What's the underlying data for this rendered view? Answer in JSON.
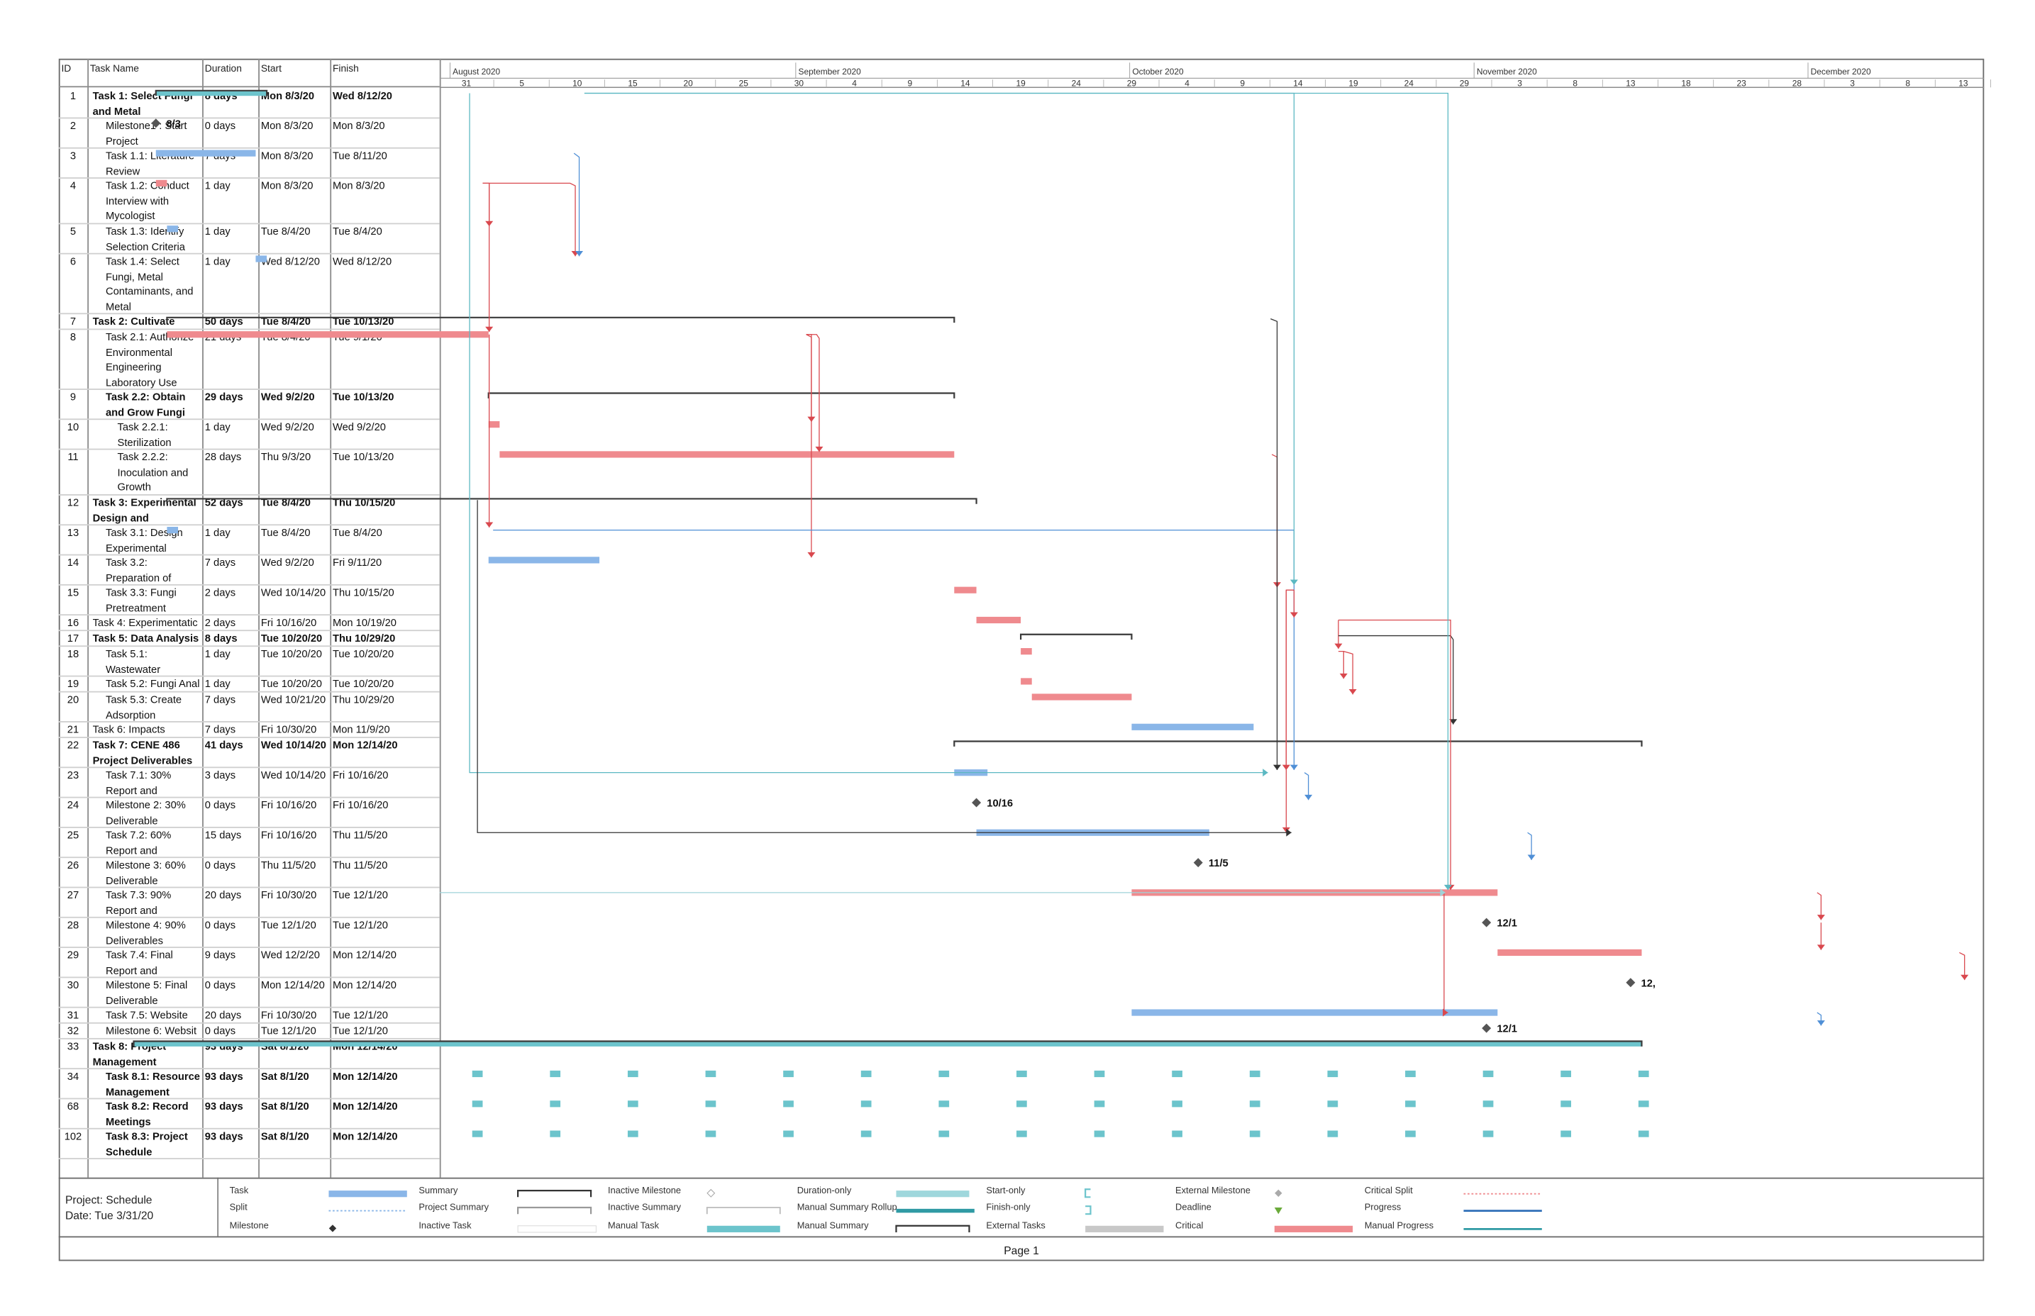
{
  "columns": {
    "id": "ID",
    "name": "Task Name",
    "duration": "Duration",
    "start": "Start",
    "finish": "Finish"
  },
  "timescale": {
    "months": [
      "August 2020",
      "September 2020",
      "October 2020",
      "November 2020",
      "December 2020"
    ],
    "days": [
      "31",
      "5",
      "10",
      "15",
      "20",
      "25",
      "30",
      "4",
      "9",
      "14",
      "19",
      "24",
      "29",
      "4",
      "9",
      "14",
      "19",
      "24",
      "29",
      "3",
      "8",
      "13",
      "18",
      "23",
      "28",
      "3",
      "8",
      "13"
    ]
  },
  "tasks": [
    {
      "id": "1",
      "name": "Task 1: Select Fungi and Metal",
      "duration": "8 days",
      "start": "Mon 8/3/20",
      "finish": "Wed 8/12/20",
      "bold": true,
      "indent": 0,
      "type": "summary",
      "bar": [
        "2020-08-03",
        "2020-08-12"
      ]
    },
    {
      "id": "2",
      "name": "Milestone1 : Start Project",
      "duration": "0 days",
      "start": "Mon 8/3/20",
      "finish": "Mon 8/3/20",
      "bold": false,
      "indent": 1,
      "type": "milestone",
      "bar": [
        "2020-08-03",
        "2020-08-03"
      ],
      "label": "8/3"
    },
    {
      "id": "3",
      "name": "Task 1.1: Literature Review",
      "duration": "7 days",
      "start": "Mon 8/3/20",
      "finish": "Tue 8/11/20",
      "bold": false,
      "indent": 1,
      "type": "task",
      "bar": [
        "2020-08-03",
        "2020-08-11"
      ]
    },
    {
      "id": "4",
      "name": "Task 1.2: Conduct Interview with Mycologist",
      "duration": "1 day",
      "start": "Mon 8/3/20",
      "finish": "Mon 8/3/20",
      "bold": false,
      "indent": 1,
      "type": "critical",
      "bar": [
        "2020-08-03",
        "2020-08-03"
      ]
    },
    {
      "id": "5",
      "name": "Task 1.3: Identify Selection Criteria",
      "duration": "1 day",
      "start": "Tue 8/4/20",
      "finish": "Tue 8/4/20",
      "bold": false,
      "indent": 1,
      "type": "task",
      "bar": [
        "2020-08-04",
        "2020-08-04"
      ]
    },
    {
      "id": "6",
      "name": "Task 1.4: Select Fungi, Metal Contaminants, and Metal",
      "duration": "1 day",
      "start": "Wed 8/12/20",
      "finish": "Wed 8/12/20",
      "bold": false,
      "indent": 1,
      "type": "task",
      "bar": [
        "2020-08-12",
        "2020-08-12"
      ]
    },
    {
      "id": "7",
      "name": "Task 2: Cultivate Fung",
      "duration": "50 days",
      "start": "Tue 8/4/20",
      "finish": "Tue 10/13/20",
      "bold": true,
      "indent": 0,
      "type": "manualsummary",
      "bar": [
        "2020-08-04",
        "2020-10-13"
      ]
    },
    {
      "id": "8",
      "name": "Task 2.1: Authorize Environmental Engineering Laboratory Use",
      "duration": "21 days",
      "start": "Tue 8/4/20",
      "finish": "Tue 9/1/20",
      "bold": false,
      "indent": 1,
      "type": "critical",
      "bar": [
        "2020-08-04",
        "2020-09-01"
      ]
    },
    {
      "id": "9",
      "name": "Task 2.2: Obtain and Grow Fungi",
      "duration": "29 days",
      "start": "Wed 9/2/20",
      "finish": "Tue 10/13/20",
      "bold": true,
      "indent": 1,
      "type": "manualsummary",
      "bar": [
        "2020-09-02",
        "2020-10-13"
      ]
    },
    {
      "id": "10",
      "name": "Task 2.2.1: Sterilization",
      "duration": "1 day",
      "start": "Wed 9/2/20",
      "finish": "Wed 9/2/20",
      "bold": false,
      "indent": 2,
      "type": "critical",
      "bar": [
        "2020-09-02",
        "2020-09-02"
      ]
    },
    {
      "id": "11",
      "name": "Task 2.2.2: Inoculation and Growth",
      "duration": "28 days",
      "start": "Thu 9/3/20",
      "finish": "Tue 10/13/20",
      "bold": false,
      "indent": 2,
      "type": "critical",
      "bar": [
        "2020-09-03",
        "2020-10-13"
      ]
    },
    {
      "id": "12",
      "name": "Task 3: Experimental Design and",
      "duration": "52 days",
      "start": "Tue 8/4/20",
      "finish": "Thu 10/15/20",
      "bold": true,
      "indent": 0,
      "type": "manualsummary",
      "bar": [
        "2020-08-04",
        "2020-10-15"
      ]
    },
    {
      "id": "13",
      "name": "Task 3.1: Design Experimental",
      "duration": "1 day",
      "start": "Tue 8/4/20",
      "finish": "Tue 8/4/20",
      "bold": false,
      "indent": 1,
      "type": "task",
      "bar": [
        "2020-08-04",
        "2020-08-04"
      ]
    },
    {
      "id": "14",
      "name": "Task 3.2: Preparation of",
      "duration": "7 days",
      "start": "Wed 9/2/20",
      "finish": "Fri 9/11/20",
      "bold": false,
      "indent": 1,
      "type": "task",
      "bar": [
        "2020-09-02",
        "2020-09-11"
      ]
    },
    {
      "id": "15",
      "name": "Task 3.3: Fungi Pretreatment",
      "duration": "2 days",
      "start": "Wed 10/14/20",
      "finish": "Thu 10/15/20",
      "bold": false,
      "indent": 1,
      "type": "critical",
      "bar": [
        "2020-10-14",
        "2020-10-15"
      ]
    },
    {
      "id": "16",
      "name": "Task 4: Experimentatic",
      "duration": "2 days",
      "start": "Fri 10/16/20",
      "finish": "Mon 10/19/20",
      "bold": false,
      "indent": 0,
      "type": "critical",
      "bar": [
        "2020-10-16",
        "2020-10-19"
      ]
    },
    {
      "id": "17",
      "name": "Task 5: Data Analysis",
      "duration": "8 days",
      "start": "Tue 10/20/20",
      "finish": "Thu 10/29/20",
      "bold": true,
      "indent": 0,
      "type": "manualsummary",
      "bar": [
        "2020-10-20",
        "2020-10-29"
      ]
    },
    {
      "id": "18",
      "name": "Task 5.1: Wastewater",
      "duration": "1 day",
      "start": "Tue 10/20/20",
      "finish": "Tue 10/20/20",
      "bold": false,
      "indent": 1,
      "type": "critical",
      "bar": [
        "2020-10-20",
        "2020-10-20"
      ]
    },
    {
      "id": "19",
      "name": "Task 5.2: Fungi Anal",
      "duration": "1 day",
      "start": "Tue 10/20/20",
      "finish": "Tue 10/20/20",
      "bold": false,
      "indent": 1,
      "type": "critical",
      "bar": [
        "2020-10-20",
        "2020-10-20"
      ]
    },
    {
      "id": "20",
      "name": "Task 5.3: Create Adsorption",
      "duration": "7 days",
      "start": "Wed 10/21/20",
      "finish": "Thu 10/29/20",
      "bold": false,
      "indent": 1,
      "type": "critical",
      "bar": [
        "2020-10-21",
        "2020-10-29"
      ]
    },
    {
      "id": "21",
      "name": "Task 6: Impacts",
      "duration": "7 days",
      "start": "Fri 10/30/20",
      "finish": "Mon 11/9/20",
      "bold": false,
      "indent": 0,
      "type": "task",
      "bar": [
        "2020-10-30",
        "2020-11-09"
      ]
    },
    {
      "id": "22",
      "name": "Task 7: CENE 486 Project Deliverables",
      "duration": "41 days",
      "start": "Wed 10/14/20",
      "finish": "Mon 12/14/20",
      "bold": true,
      "indent": 0,
      "type": "manualsummary",
      "bar": [
        "2020-10-14",
        "2020-12-14"
      ]
    },
    {
      "id": "23",
      "name": "Task 7.1: 30% Report and",
      "duration": "3 days",
      "start": "Wed 10/14/20",
      "finish": "Fri 10/16/20",
      "bold": false,
      "indent": 1,
      "type": "task",
      "bar": [
        "2020-10-14",
        "2020-10-16"
      ]
    },
    {
      "id": "24",
      "name": "Milestone 2: 30% Deliverable",
      "duration": "0 days",
      "start": "Fri 10/16/20",
      "finish": "Fri 10/16/20",
      "bold": false,
      "indent": 1,
      "type": "milestone",
      "bar": [
        "2020-10-16",
        "2020-10-16"
      ],
      "label": "10/16"
    },
    {
      "id": "25",
      "name": "Task 7.2: 60% Report and",
      "duration": "15 days",
      "start": "Fri 10/16/20",
      "finish": "Thu 11/5/20",
      "bold": false,
      "indent": 1,
      "type": "task",
      "bar": [
        "2020-10-16",
        "2020-11-05"
      ]
    },
    {
      "id": "26",
      "name": "Milestone 3: 60% Deliverable",
      "duration": "0 days",
      "start": "Thu 11/5/20",
      "finish": "Thu 11/5/20",
      "bold": false,
      "indent": 1,
      "type": "milestone",
      "bar": [
        "2020-11-05",
        "2020-11-05"
      ],
      "label": "11/5"
    },
    {
      "id": "27",
      "name": "Task 7.3: 90% Report and",
      "duration": "20 days",
      "start": "Fri 10/30/20",
      "finish": "Tue 12/1/20",
      "bold": false,
      "indent": 1,
      "type": "critical",
      "bar": [
        "2020-10-30",
        "2020-12-01"
      ]
    },
    {
      "id": "28",
      "name": "Milestone 4: 90% Deliverables",
      "duration": "0 days",
      "start": "Tue 12/1/20",
      "finish": "Tue 12/1/20",
      "bold": false,
      "indent": 1,
      "type": "milestone",
      "bar": [
        "2020-12-01",
        "2020-12-01"
      ],
      "label": "12/1"
    },
    {
      "id": "29",
      "name": "Task 7.4: Final Report and",
      "duration": "9 days",
      "start": "Wed 12/2/20",
      "finish": "Mon 12/14/20",
      "bold": false,
      "indent": 1,
      "type": "critical",
      "bar": [
        "2020-12-02",
        "2020-12-14"
      ]
    },
    {
      "id": "30",
      "name": "Milestone 5: Final Deliverable",
      "duration": "0 days",
      "start": "Mon 12/14/20",
      "finish": "Mon 12/14/20",
      "bold": false,
      "indent": 1,
      "type": "milestone",
      "bar": [
        "2020-12-14",
        "2020-12-14"
      ],
      "label": "12,"
    },
    {
      "id": "31",
      "name": "Task 7.5: Website",
      "duration": "20 days",
      "start": "Fri 10/30/20",
      "finish": "Tue 12/1/20",
      "bold": false,
      "indent": 1,
      "type": "task",
      "bar": [
        "2020-10-30",
        "2020-12-01"
      ]
    },
    {
      "id": "32",
      "name": "Milestone 6: Websit",
      "duration": "0 days",
      "start": "Tue 12/1/20",
      "finish": "Tue 12/1/20",
      "bold": false,
      "indent": 1,
      "type": "milestone",
      "bar": [
        "2020-12-01",
        "2020-12-01"
      ],
      "label": "12/1"
    },
    {
      "id": "33",
      "name": "Task 8: Project Management",
      "duration": "93 days",
      "start": "Sat 8/1/20",
      "finish": "Mon 12/14/20",
      "bold": true,
      "indent": 0,
      "type": "projsummary",
      "bar": [
        "2020-08-01",
        "2020-12-14"
      ]
    },
    {
      "id": "34",
      "name": "Task 8.1: Resource Management",
      "duration": "93 days",
      "start": "Sat 8/1/20",
      "finish": "Mon 12/14/20",
      "bold": true,
      "indent": 1,
      "type": "recurring",
      "bar": [
        "2020-08-01",
        "2020-12-14"
      ]
    },
    {
      "id": "68",
      "name": "Task 8.2: Record Meetings",
      "duration": "93 days",
      "start": "Sat 8/1/20",
      "finish": "Mon 12/14/20",
      "bold": true,
      "indent": 1,
      "type": "recurring",
      "bar": [
        "2020-08-01",
        "2020-12-14"
      ]
    },
    {
      "id": "102",
      "name": "Task 8.3: Project Schedule",
      "duration": "93 days",
      "start": "Sat 8/1/20",
      "finish": "Mon 12/14/20",
      "bold": true,
      "indent": 1,
      "type": "recurring",
      "bar": [
        "2020-08-01",
        "2020-12-14"
      ]
    }
  ],
  "legend": {
    "project": "Project: Schedule",
    "date": "Date: Tue 3/31/20",
    "items": [
      {
        "label": "Task",
        "swatch": "task"
      },
      {
        "label": "Split",
        "swatch": "split"
      },
      {
        "label": "Milestone",
        "swatch": "milestone"
      },
      {
        "label": "Summary",
        "swatch": "summary"
      },
      {
        "label": "Project Summary",
        "swatch": "projsummary"
      },
      {
        "label": "Inactive Task",
        "swatch": "inactivetask"
      },
      {
        "label": "Inactive Milestone",
        "swatch": "inactivemilestone"
      },
      {
        "label": "Inactive Summary",
        "swatch": "inactivesummary"
      },
      {
        "label": "Manual Task",
        "swatch": "manualtask"
      },
      {
        "label": "Duration-only",
        "swatch": "durationonly"
      },
      {
        "label": "Manual Summary Rollup",
        "swatch": "manualrollup"
      },
      {
        "label": "Manual Summary",
        "swatch": "manualsummary"
      },
      {
        "label": "Start-only",
        "swatch": "startonly"
      },
      {
        "label": "Finish-only",
        "swatch": "finishonly"
      },
      {
        "label": "External Tasks",
        "swatch": "externaltasks"
      },
      {
        "label": "External Milestone",
        "swatch": "externalmilestone"
      },
      {
        "label": "Deadline",
        "swatch": "deadline"
      },
      {
        "label": "Critical",
        "swatch": "critical"
      },
      {
        "label": "Critical Split",
        "swatch": "criticalsplit"
      },
      {
        "label": "Progress",
        "swatch": "progress"
      },
      {
        "label": "Manual Progress",
        "swatch": "manualprogress"
      }
    ]
  },
  "page_label": "Page 1",
  "colors": {
    "task": "#8ab6e8",
    "critical": "#ef8a8e",
    "summary": "#3a3a3a",
    "teal": "#6cc4cc",
    "link_red": "#d9484e",
    "link_blue": "#4f8fd6",
    "link_teal": "#5bb8c2",
    "milestone": "#555555"
  }
}
